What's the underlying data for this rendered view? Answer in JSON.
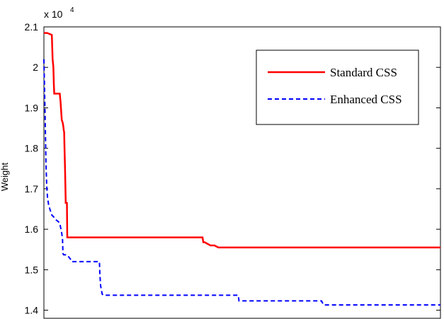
{
  "chart_data": {
    "type": "line",
    "ylabel": "Weight",
    "y_exponent_base": "x 10",
    "y_exponent_power": "4",
    "ylim": [
      1.38,
      2.1
    ],
    "xlim": [
      0,
      1000
    ],
    "y_ticks": [
      "1.4",
      "1.5",
      "1.6",
      "1.7",
      "1.8",
      "1.9",
      "2",
      "2.1"
    ],
    "y_tick_values": [
      1.4,
      1.5,
      1.6,
      1.7,
      1.8,
      1.9,
      2.0,
      2.1
    ],
    "grid": false,
    "legend_position": "top-right",
    "series": [
      {
        "name": "Standard CSS",
        "color": "#ff0000",
        "style": "solid",
        "x": [
          0,
          8,
          20,
          22,
          24,
          25,
          26,
          27,
          28,
          40,
          42,
          45,
          47,
          49,
          50,
          51,
          52,
          53,
          54,
          55,
          56,
          57,
          58,
          59,
          60,
          61,
          62,
          63,
          64,
          65,
          66,
          400,
          402,
          405,
          420,
          430,
          440,
          1000
        ],
        "y": [
          2.085,
          2.085,
          2.08,
          2.02,
          2.0,
          1.96,
          1.935,
          1.935,
          1.935,
          1.935,
          1.915,
          1.87,
          1.865,
          1.855,
          1.845,
          1.84,
          1.8,
          1.76,
          1.72,
          1.665,
          1.665,
          1.665,
          1.665,
          1.58,
          1.58,
          1.58,
          1.58,
          1.58,
          1.58,
          1.58,
          1.58,
          1.58,
          1.568,
          1.568,
          1.56,
          1.56,
          1.555,
          1.555
        ]
      },
      {
        "name": "Enhanced CSS",
        "color": "#0000ff",
        "style": "dashed",
        "x": [
          0,
          2,
          3,
          4,
          5,
          7,
          9,
          12,
          15,
          20,
          25,
          28,
          35,
          40,
          45,
          47,
          48,
          50,
          51,
          52,
          58,
          68,
          70,
          140,
          141,
          143,
          147,
          150,
          490,
          492,
          510,
          700,
          705,
          1000
        ],
        "y": [
          2.02,
          1.93,
          1.88,
          1.83,
          1.77,
          1.71,
          1.68,
          1.66,
          1.65,
          1.635,
          1.63,
          1.625,
          1.62,
          1.615,
          1.59,
          1.575,
          1.54,
          1.537,
          1.537,
          1.537,
          1.537,
          1.525,
          1.52,
          1.52,
          1.49,
          1.46,
          1.44,
          1.437,
          1.437,
          1.423,
          1.423,
          1.423,
          1.413,
          1.413
        ]
      }
    ]
  }
}
